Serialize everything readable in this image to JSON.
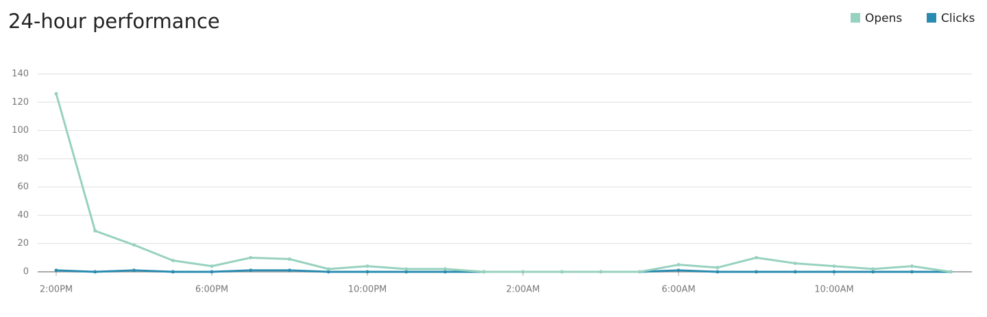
{
  "chart_data": {
    "type": "line",
    "title": "24-hour performance",
    "categories": [
      "2:00PM",
      null,
      null,
      null,
      "6:00PM",
      null,
      null,
      null,
      "10:00PM",
      null,
      null,
      null,
      "2:00AM",
      null,
      null,
      null,
      "6:00AM",
      null,
      null,
      null,
      "10:00AM",
      null,
      null,
      null
    ],
    "series": [
      {
        "name": "Opens",
        "color": "#97d1bf",
        "values": [
          126,
          29,
          19,
          8,
          4,
          10,
          9,
          2,
          4,
          2,
          2,
          0,
          0,
          0,
          0,
          0,
          5,
          3,
          10,
          6,
          4,
          2,
          4,
          0
        ]
      },
      {
        "name": "Clicks",
        "color": "#2a8bb0",
        "values": [
          1,
          0,
          1,
          0,
          0,
          1,
          1,
          0,
          0,
          0,
          0,
          0,
          0,
          0,
          0,
          0,
          1,
          0,
          0,
          0,
          0,
          0,
          0,
          0
        ]
      }
    ],
    "ylim": [
      0,
      140
    ],
    "yticks": [
      0,
      20,
      40,
      60,
      80,
      100,
      120,
      140
    ],
    "grid": true,
    "legend": "top-right"
  }
}
